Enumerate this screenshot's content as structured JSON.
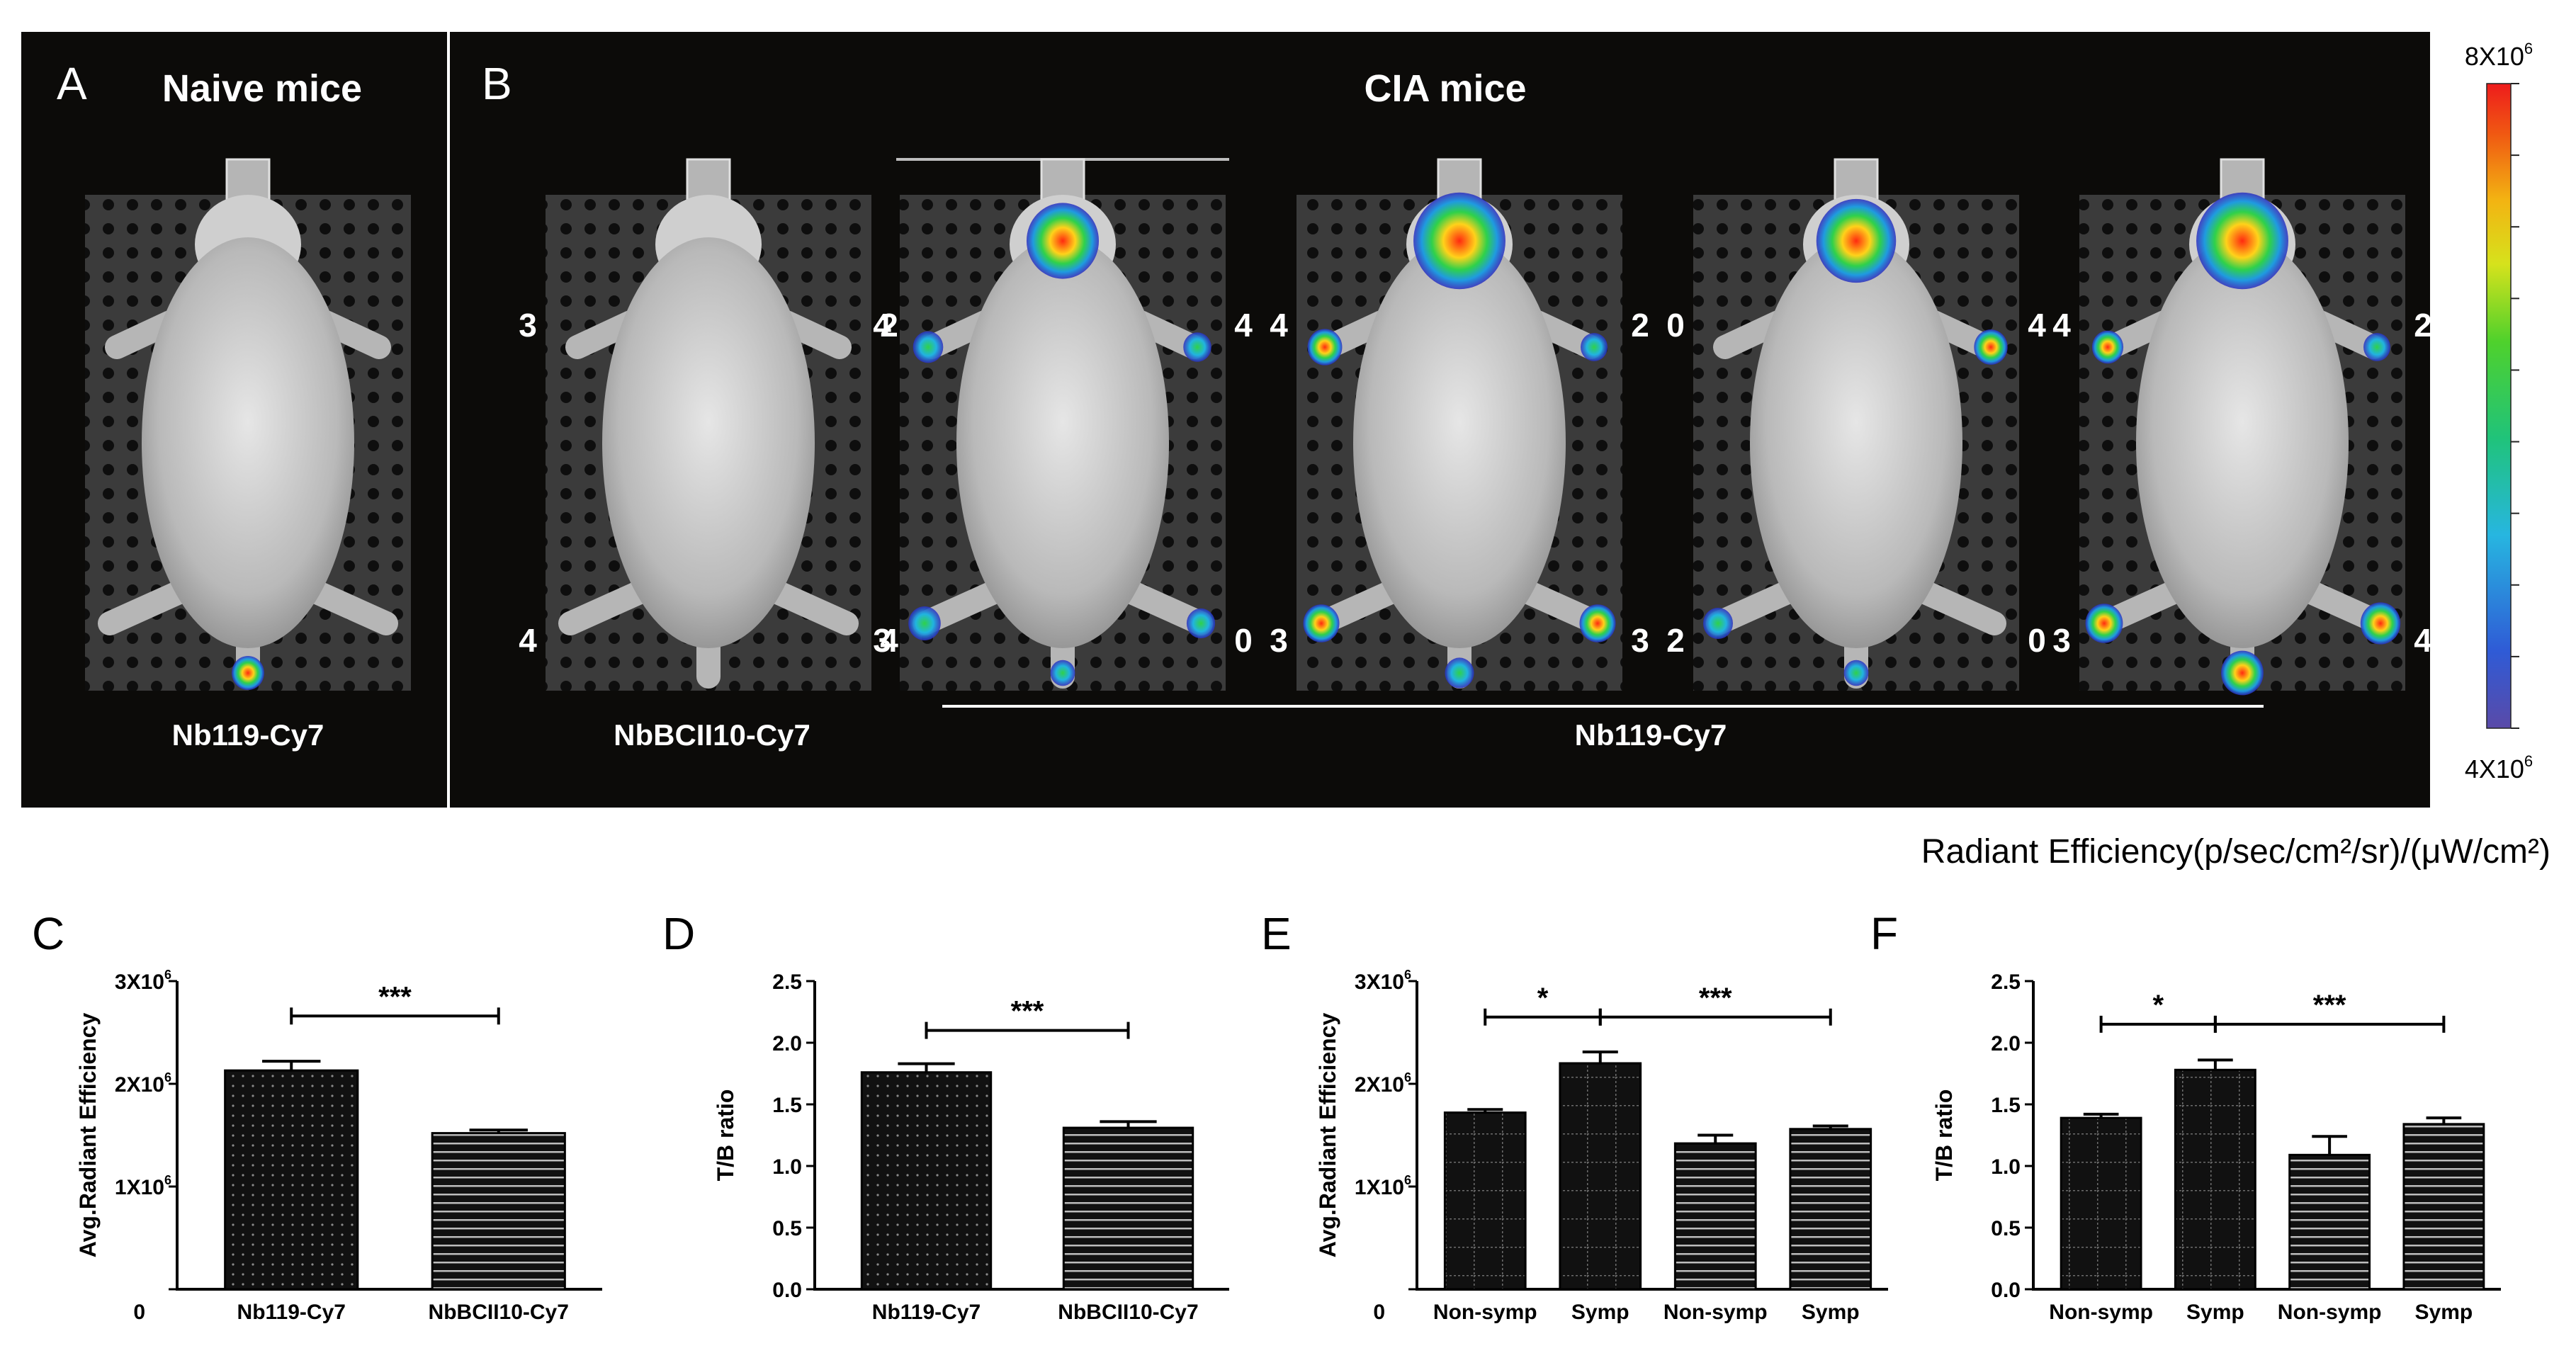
{
  "imaging": {
    "panel_a": {
      "letter": "A",
      "title": "Naive mice",
      "label": "Nb119-Cy7"
    },
    "panel_b": {
      "letter": "B",
      "title": "CIA mice",
      "label_control": "NbBCII10-Cy7",
      "label_group": "Nb119-Cy7"
    },
    "mice": [
      {
        "group": "naive",
        "scores": {
          "left_front": "",
          "right_front": "",
          "left_hind": "",
          "right_hind": ""
        },
        "signals": {
          "head": 0,
          "left_front": 0,
          "right_front": 0,
          "left_hind": 0,
          "right_hind": 0,
          "tail": 0.55
        }
      },
      {
        "group": "control",
        "scores": {
          "left_front": "3",
          "right_front": "2",
          "left_hind": "4",
          "right_hind": "4"
        },
        "signals": {
          "head": 0,
          "left_front": 0,
          "right_front": 0,
          "left_hind": 0,
          "right_hind": 0,
          "tail": 0
        }
      },
      {
        "group": "nb119",
        "scores": {
          "left_front": "4",
          "right_front": "4",
          "left_hind": "3",
          "right_hind": "0"
        },
        "signals": {
          "head": 0.55,
          "left_front": 0.45,
          "right_front": 0.35,
          "left_hind": 0.35,
          "right_hind": 0.2,
          "tail": 0.2
        }
      },
      {
        "group": "nb119",
        "scores": {
          "left_front": "4",
          "right_front": "2",
          "left_hind": "3",
          "right_hind": "3"
        },
        "signals": {
          "head": 0.95,
          "left_front": 0.65,
          "right_front": 0.3,
          "left_hind": 0.5,
          "right_hind": 0.5,
          "tail": 0.4
        }
      },
      {
        "group": "nb119",
        "scores": {
          "left_front": "0",
          "right_front": "4",
          "left_hind": "2",
          "right_hind": "0"
        },
        "signals": {
          "head": 0.7,
          "left_front": 0,
          "right_front": 0.6,
          "left_hind": 0.25,
          "right_hind": 0,
          "tail": 0.2
        }
      },
      {
        "group": "nb119",
        "scores": {
          "left_front": "4",
          "right_front": "2",
          "left_hind": "3",
          "right_hind": "4"
        },
        "signals": {
          "head": 0.95,
          "left_front": 0.5,
          "right_front": 0.3,
          "left_hind": 0.55,
          "right_hind": 0.65,
          "tail": 1.0
        }
      }
    ],
    "colorbar": {
      "max_label": "8X10",
      "max_exp": "6",
      "min_label": "4X10",
      "min_exp": "6",
      "unit_text": "Radiant Efficiency(p/sec/cm²/sr)/(μW/cm²)"
    },
    "colors": {
      "background": "#0c0b09",
      "mouse": "#c9c9c9",
      "plate": "#3a3a3a"
    }
  },
  "chart_data": [
    {
      "panel": "C",
      "type": "bar",
      "categories": [
        "Nb119-Cy7",
        "NbBCII10-Cy7"
      ],
      "values": [
        2130000,
        1520000
      ],
      "errors": [
        90000,
        30000
      ],
      "patterns": [
        "dots",
        "stripes"
      ],
      "ylim": [
        0,
        3000000
      ],
      "yticks": [
        {
          "value": 0,
          "label": "0",
          "exp": ""
        },
        {
          "value": 1000000,
          "label": "1X10",
          "exp": "6"
        },
        {
          "value": 2000000,
          "label": "2X10",
          "exp": "6"
        },
        {
          "value": 3000000,
          "label": "3X10",
          "exp": "6"
        }
      ],
      "ylabel": "Avg.Radiant Efficiency",
      "significance": [
        {
          "from": 0,
          "to": 1,
          "label": "***",
          "value": 2660000
        }
      ]
    },
    {
      "panel": "D",
      "type": "bar",
      "categories": [
        "Nb119-Cy7",
        "NbBCII10-Cy7"
      ],
      "values": [
        1.76,
        1.31
      ],
      "errors": [
        0.07,
        0.05
      ],
      "patterns": [
        "dots",
        "stripes"
      ],
      "ylim": [
        0,
        2.5
      ],
      "yticks": [
        {
          "value": 0,
          "label": "0.0",
          "exp": ""
        },
        {
          "value": 0.5,
          "label": "0.5",
          "exp": ""
        },
        {
          "value": 1.0,
          "label": "1.0",
          "exp": ""
        },
        {
          "value": 1.5,
          "label": "1.5",
          "exp": ""
        },
        {
          "value": 2.0,
          "label": "2.0",
          "exp": ""
        },
        {
          "value": 2.5,
          "label": "2.5",
          "exp": ""
        }
      ],
      "ylabel": "T/B ratio",
      "significance": [
        {
          "from": 0,
          "to": 1,
          "label": "***",
          "value": 2.1
        }
      ]
    },
    {
      "panel": "E",
      "type": "bar",
      "categories": [
        "Non-symp",
        "Symp",
        "Non-symp",
        "Symp"
      ],
      "values": [
        1720000,
        2200000,
        1420000,
        1560000
      ],
      "errors": [
        30000,
        110000,
        80000,
        30000
      ],
      "patterns": [
        "grid",
        "grid",
        "stripes",
        "stripes"
      ],
      "ylim": [
        0,
        3000000
      ],
      "yticks": [
        {
          "value": 0,
          "label": "0",
          "exp": ""
        },
        {
          "value": 1000000,
          "label": "1X10",
          "exp": "6"
        },
        {
          "value": 2000000,
          "label": "2X10",
          "exp": "6"
        },
        {
          "value": 3000000,
          "label": "3X10",
          "exp": "6"
        }
      ],
      "ylabel": "Avg.Radiant Efficiency",
      "significance": [
        {
          "from": 0,
          "to": 1,
          "label": "*",
          "value": 2650000
        },
        {
          "from": 1,
          "to": 3,
          "label": "***",
          "value": 2650000
        }
      ]
    },
    {
      "panel": "F",
      "type": "bar",
      "categories": [
        "Non-symp",
        "Symp",
        "Non-symp",
        "Symp"
      ],
      "values": [
        1.39,
        1.78,
        1.09,
        1.34
      ],
      "errors": [
        0.03,
        0.08,
        0.15,
        0.05
      ],
      "patterns": [
        "grid",
        "grid",
        "stripes",
        "stripes"
      ],
      "ylim": [
        0,
        2.5
      ],
      "yticks": [
        {
          "value": 0,
          "label": "0.0",
          "exp": ""
        },
        {
          "value": 0.5,
          "label": "0.5",
          "exp": ""
        },
        {
          "value": 1.0,
          "label": "1.0",
          "exp": ""
        },
        {
          "value": 1.5,
          "label": "1.5",
          "exp": ""
        },
        {
          "value": 2.0,
          "label": "2.0",
          "exp": ""
        },
        {
          "value": 2.5,
          "label": "2.5",
          "exp": ""
        }
      ],
      "ylabel": "T/B ratio",
      "significance": [
        {
          "from": 0,
          "to": 1,
          "label": "*",
          "value": 2.15
        },
        {
          "from": 1,
          "to": 3,
          "label": "***",
          "value": 2.15
        }
      ]
    }
  ]
}
